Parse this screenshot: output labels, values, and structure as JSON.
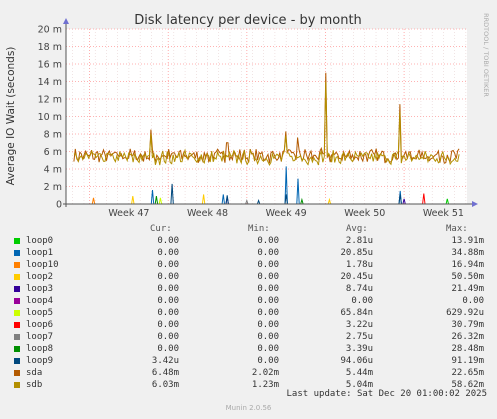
{
  "title": "Disk latency per device - by month",
  "side_label": "RRDTOOL / TOBI OETIKER",
  "colors": {
    "background": "#f0f0f0",
    "plot_background": "#ffffff",
    "grid_major": "#ff9999",
    "axis": "#555555"
  },
  "chart_data": {
    "type": "line",
    "title": "Disk latency per device - by month",
    "ylabel": "Average IO Wait (seconds)",
    "ylim": [
      0,
      20
    ],
    "y_unit": "m",
    "yticks": [
      0,
      2,
      4,
      6,
      8,
      10,
      12,
      14,
      16,
      18,
      20
    ],
    "ytick_labels": [
      "0",
      "2 m",
      "4 m",
      "6 m",
      "8 m",
      "10 m",
      "12 m",
      "14 m",
      "16 m",
      "18 m",
      "20 m"
    ],
    "x_range_weeks": [
      46.2,
      51.3
    ],
    "xticks": [
      47,
      48,
      49,
      50,
      51
    ],
    "xtick_labels": [
      "Week 47",
      "Week 48",
      "Week 49",
      "Week 50",
      "Week 51"
    ],
    "grid": true,
    "series": [
      {
        "name": "loop0",
        "color": "#00cc00",
        "spikes": [
          [
            51.05,
            0.6
          ]
        ]
      },
      {
        "name": "loop1",
        "color": "#0066b3",
        "spikes": [
          [
            47.3,
            1.6
          ],
          [
            48.2,
            1.1
          ],
          [
            49.0,
            4.3
          ],
          [
            49.15,
            2.9
          ],
          [
            50.45,
            1.5
          ]
        ]
      },
      {
        "name": "loop10",
        "color": "#ff8000",
        "spikes": [
          [
            46.55,
            0.7
          ]
        ]
      },
      {
        "name": "loop2",
        "color": "#ffcc00",
        "spikes": [
          [
            47.05,
            0.9
          ],
          [
            47.95,
            1.1
          ],
          [
            49.55,
            0.5
          ]
        ]
      },
      {
        "name": "loop3",
        "color": "#330099",
        "spikes": [
          [
            48.25,
            0.8
          ],
          [
            50.5,
            0.6
          ]
        ]
      },
      {
        "name": "loop4",
        "color": "#990099",
        "spikes": []
      },
      {
        "name": "loop5",
        "color": "#ccff00",
        "spikes": [
          [
            47.4,
            0.7
          ]
        ]
      },
      {
        "name": "loop6",
        "color": "#ff0000",
        "spikes": [
          [
            50.75,
            1.2
          ]
        ]
      },
      {
        "name": "loop7",
        "color": "#808080",
        "spikes": [
          [
            48.5,
            0.4
          ]
        ]
      },
      {
        "name": "loop8",
        "color": "#008f00",
        "spikes": [
          [
            47.35,
            0.9
          ],
          [
            49.2,
            0.5
          ]
        ]
      },
      {
        "name": "loop9",
        "color": "#00487d",
        "spikes": [
          [
            47.55,
            2.3
          ],
          [
            48.25,
            1.0
          ],
          [
            48.65,
            0.4
          ],
          [
            49.0,
            1.1
          ],
          [
            50.45,
            1.1
          ]
        ]
      },
      {
        "name": "sda",
        "color": "#b35a00",
        "baseline": 5.5,
        "spikes": [
          [
            47.28,
            8.5
          ],
          [
            48.25,
            7.0
          ],
          [
            49.0,
            8.3
          ],
          [
            49.15,
            7.6
          ],
          [
            49.5,
            15.0
          ],
          [
            50.45,
            11.4
          ]
        ]
      },
      {
        "name": "sdb",
        "color": "#b38f00",
        "baseline": 5.3,
        "spikes": [
          [
            47.28,
            8.0
          ],
          [
            49.0,
            7.8
          ],
          [
            49.5,
            14.0
          ],
          [
            50.45,
            10.5
          ]
        ]
      }
    ]
  },
  "legend": {
    "header": {
      "cur": "Cur:",
      "min": "Min:",
      "avg": "Avg:",
      "max": "Max:"
    },
    "rows": [
      {
        "name": "loop0",
        "color": "#00cc00",
        "cur": "0.00",
        "min": "0.00",
        "avg": "2.81u",
        "max": "13.91m"
      },
      {
        "name": "loop1",
        "color": "#0066b3",
        "cur": "0.00",
        "min": "0.00",
        "avg": "20.85u",
        "max": "34.88m"
      },
      {
        "name": "loop10",
        "color": "#ff8000",
        "cur": "0.00",
        "min": "0.00",
        "avg": "1.78u",
        "max": "16.94m"
      },
      {
        "name": "loop2",
        "color": "#ffcc00",
        "cur": "0.00",
        "min": "0.00",
        "avg": "20.45u",
        "max": "50.50m"
      },
      {
        "name": "loop3",
        "color": "#330099",
        "cur": "0.00",
        "min": "0.00",
        "avg": "8.74u",
        "max": "21.49m"
      },
      {
        "name": "loop4",
        "color": "#990099",
        "cur": "0.00",
        "min": "0.00",
        "avg": "0.00",
        "max": "0.00"
      },
      {
        "name": "loop5",
        "color": "#ccff00",
        "cur": "0.00",
        "min": "0.00",
        "avg": "65.84n",
        "max": "629.92u"
      },
      {
        "name": "loop6",
        "color": "#ff0000",
        "cur": "0.00",
        "min": "0.00",
        "avg": "3.22u",
        "max": "30.79m"
      },
      {
        "name": "loop7",
        "color": "#808080",
        "cur": "0.00",
        "min": "0.00",
        "avg": "2.75u",
        "max": "26.32m"
      },
      {
        "name": "loop8",
        "color": "#008f00",
        "cur": "0.00",
        "min": "0.00",
        "avg": "3.39u",
        "max": "28.48m"
      },
      {
        "name": "loop9",
        "color": "#00487d",
        "cur": "3.42u",
        "min": "0.00",
        "avg": "94.06u",
        "max": "91.19m"
      },
      {
        "name": "sda",
        "color": "#b35a00",
        "cur": "6.48m",
        "min": "2.02m",
        "avg": "5.44m",
        "max": "22.65m"
      },
      {
        "name": "sdb",
        "color": "#b38f00",
        "cur": "6.03m",
        "min": "1.23m",
        "avg": "5.04m",
        "max": "58.62m"
      }
    ]
  },
  "last_update": "Last update: Sat Dec 20 01:00:02 2025",
  "munin_version": "Munin 2.0.56"
}
